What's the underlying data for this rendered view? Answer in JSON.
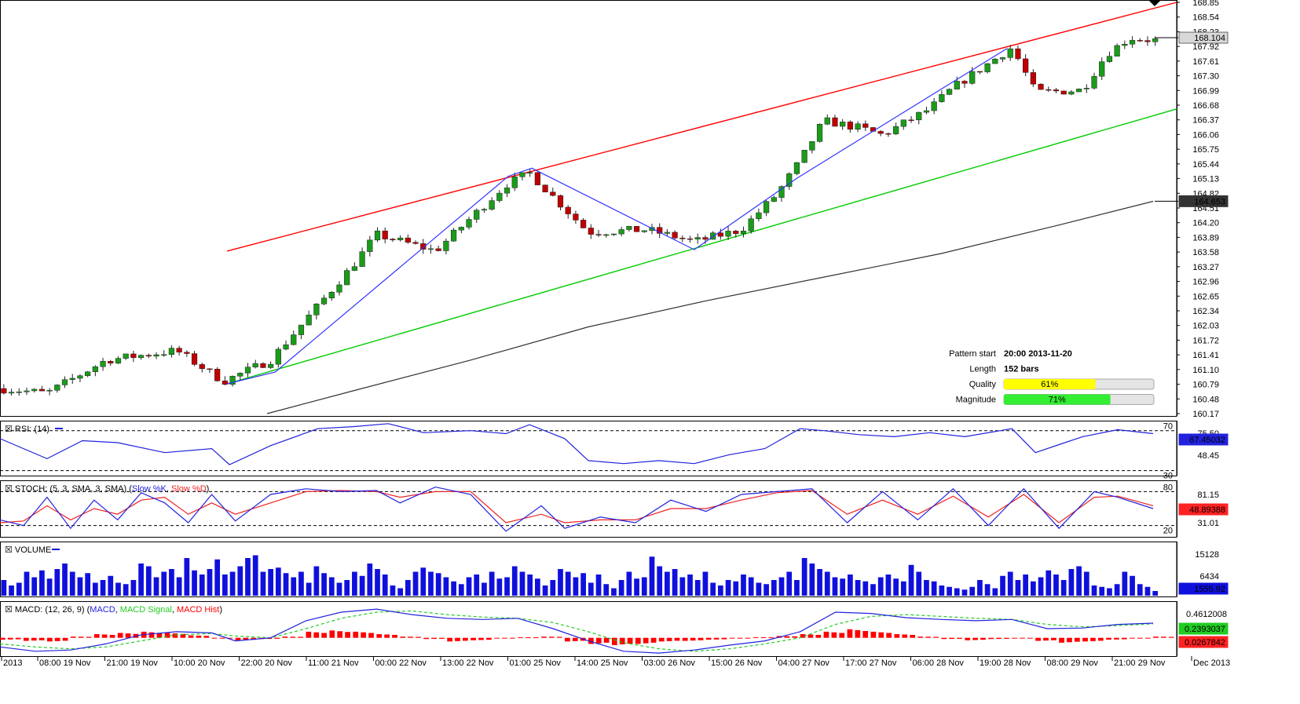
{
  "chart_data": {
    "type": "candlestick",
    "main": {
      "y_ticks": [
        "168.85",
        "168.54",
        "168.23",
        "167.92",
        "167.61",
        "167.30",
        "166.99",
        "166.68",
        "166.37",
        "166.06",
        "165.75",
        "165.44",
        "165.13",
        "164.82",
        "164.51",
        "164.20",
        "163.89",
        "163.58",
        "163.27",
        "162.96",
        "162.65",
        "162.34",
        "162.03",
        "161.72",
        "161.41",
        "161.10",
        "160.79",
        "160.48",
        "160.17"
      ],
      "ylim": [
        160.17,
        168.85
      ],
      "last_price_label": "168.104",
      "ma_price_label": "164.653",
      "pattern_info": {
        "start_label": "Pattern start",
        "start_value": "20:00 2013-11-20",
        "length_label": "Length",
        "length_value": "152 bars",
        "quality_label": "Quality",
        "quality_value": "61%",
        "quality": 0.61,
        "magnitude_label": "Magnitude",
        "magnitude_value": "71%",
        "magnitude": 0.71
      },
      "channel_upper": {
        "x": [
          0.193,
          1.0
        ],
        "y": [
          163.6,
          168.85
        ]
      },
      "channel_lower": {
        "x": [
          0.193,
          1.0
        ],
        "y": [
          160.8,
          166.6
        ]
      },
      "pattern_path": {
        "x": [
          0.193,
          0.234,
          0.432,
          0.452,
          0.59,
          0.678,
          0.856
        ],
        "y": [
          160.8,
          161.05,
          165.18,
          165.35,
          163.63,
          165.15,
          167.88
        ]
      },
      "ma_line": {
        "x": [
          0.227,
          0.3,
          0.4,
          0.5,
          0.6,
          0.7,
          0.8,
          0.9,
          0.98
        ],
        "y": [
          160.17,
          160.65,
          161.3,
          162.0,
          162.55,
          163.05,
          163.55,
          164.15,
          164.65
        ]
      },
      "candle_anchors": {
        "x": [
          0.0,
          0.04,
          0.09,
          0.15,
          0.19,
          0.23,
          0.3,
          0.32,
          0.37,
          0.43,
          0.45,
          0.5,
          0.55,
          0.59,
          0.63,
          0.66,
          0.68,
          0.7,
          0.73,
          0.75,
          0.79,
          0.81,
          0.86,
          0.88,
          0.92,
          0.94,
          0.96,
          0.98
        ],
        "y": [
          160.7,
          160.6,
          161.3,
          161.5,
          160.85,
          161.3,
          163.3,
          163.95,
          163.6,
          165.0,
          165.25,
          164.0,
          164.05,
          163.8,
          164.05,
          164.8,
          165.5,
          166.35,
          166.2,
          166.05,
          166.6,
          167.05,
          167.9,
          166.95,
          167.0,
          167.75,
          168.1,
          168.05
        ]
      }
    },
    "rsi": {
      "label": "RSI: (14)",
      "value_label": "67.45032",
      "level_labels": [
        "70",
        "48.45",
        "30"
      ],
      "top_label": "75.50",
      "levels": [
        70,
        30
      ],
      "ylim": [
        25,
        80
      ],
      "x": [
        0.0,
        0.04,
        0.07,
        0.1,
        0.14,
        0.18,
        0.195,
        0.23,
        0.27,
        0.3,
        0.33,
        0.36,
        0.4,
        0.43,
        0.45,
        0.48,
        0.5,
        0.53,
        0.56,
        0.59,
        0.62,
        0.65,
        0.68,
        0.7,
        0.73,
        0.76,
        0.79,
        0.82,
        0.86,
        0.88,
        0.9,
        0.92,
        0.95,
        0.98
      ],
      "y": [
        62,
        42,
        60,
        58,
        48,
        52,
        36,
        55,
        72,
        74,
        77,
        68,
        70,
        67,
        76,
        62,
        40,
        37,
        40,
        37,
        46,
        52,
        72,
        70,
        66,
        64,
        68,
        64,
        72,
        48,
        56,
        64,
        71,
        67
      ]
    },
    "stoch": {
      "label": "STOCH: (5, 3, SMA, 3, SMA)",
      "k_label": "Slow %K",
      "d_label": "Slow %D",
      "value_label": "48.89388",
      "level_labels": [
        "80",
        "81.15",
        "20",
        "31.01"
      ],
      "levels": [
        80,
        20
      ],
      "ylim": [
        0,
        100
      ],
      "k": {
        "x": [
          0.0,
          0.02,
          0.04,
          0.06,
          0.08,
          0.1,
          0.12,
          0.14,
          0.16,
          0.18,
          0.2,
          0.23,
          0.26,
          0.29,
          0.32,
          0.34,
          0.37,
          0.4,
          0.43,
          0.46,
          0.48,
          0.51,
          0.54,
          0.57,
          0.6,
          0.63,
          0.66,
          0.69,
          0.72,
          0.75,
          0.78,
          0.81,
          0.84,
          0.87,
          0.9,
          0.93,
          0.95,
          0.98
        ],
        "y": [
          30,
          20,
          70,
          15,
          65,
          30,
          78,
          60,
          25,
          75,
          28,
          75,
          85,
          80,
          82,
          60,
          88,
          75,
          10,
          55,
          15,
          35,
          25,
          65,
          45,
          75,
          80,
          85,
          25,
          80,
          30,
          85,
          20,
          85,
          15,
          80,
          70,
          50
        ]
      },
      "d": {
        "x": [
          0.0,
          0.02,
          0.04,
          0.06,
          0.08,
          0.1,
          0.12,
          0.14,
          0.16,
          0.18,
          0.2,
          0.23,
          0.26,
          0.29,
          0.32,
          0.34,
          0.37,
          0.4,
          0.43,
          0.46,
          0.48,
          0.51,
          0.54,
          0.57,
          0.6,
          0.63,
          0.66,
          0.69,
          0.72,
          0.75,
          0.78,
          0.81,
          0.84,
          0.87,
          0.9,
          0.93,
          0.95,
          0.98
        ],
        "y": [
          25,
          28,
          55,
          30,
          50,
          40,
          65,
          70,
          40,
          60,
          40,
          60,
          80,
          82,
          80,
          70,
          80,
          80,
          25,
          40,
          25,
          30,
          30,
          50,
          50,
          65,
          78,
          82,
          40,
          65,
          40,
          72,
          35,
          75,
          25,
          70,
          72,
          55
        ]
      }
    },
    "volume": {
      "label": "VOLUME",
      "value_label": "1555.92",
      "tick_labels": [
        "15128",
        "6434"
      ],
      "ylim": [
        0,
        20000
      ],
      "values": [
        6000,
        4000,
        5000,
        9000,
        7000,
        9500,
        6500,
        10000,
        12000,
        9000,
        7000,
        8500,
        5000,
        6000,
        7500,
        5000,
        4500,
        6000,
        12000,
        11000,
        7000,
        9000,
        10000,
        7000,
        14000,
        9500,
        8000,
        10000,
        13500,
        8000,
        9000,
        11000,
        14000,
        15000,
        9000,
        10000,
        10500,
        8500,
        7000,
        9000,
        5000,
        11000,
        8500,
        7000,
        5000,
        6000,
        9000,
        7500,
        12000,
        10000,
        8000,
        4000,
        3000,
        6000,
        9000,
        10500,
        9000,
        8500,
        7000,
        5500,
        4500,
        7000,
        8000,
        5000,
        9000,
        6500,
        7000,
        11000,
        9000,
        8000,
        6500,
        4000,
        6000,
        10000,
        9000,
        7000,
        8500,
        5000,
        8000,
        4500,
        3000,
        6000,
        9000,
        6500,
        7000,
        14500,
        11000,
        9000,
        10000,
        7000,
        8000,
        6000,
        9000,
        5000,
        4000,
        6000,
        5500,
        8000,
        7000,
        5000,
        4500,
        6000,
        7000,
        9000,
        6000,
        14000,
        12000,
        10000,
        9000,
        7000,
        6500,
        8000,
        6000,
        5500,
        4500,
        7000,
        8000,
        6500,
        5500,
        11500,
        9000,
        6000,
        5500,
        4000,
        3500,
        3000,
        2500,
        3500,
        6000,
        4500,
        3000,
        7500,
        9000,
        6000,
        8000,
        5500,
        7000,
        9500,
        8000,
        6000,
        10000,
        11000,
        9000,
        4000,
        3500,
        3000,
        4500,
        9000,
        7500,
        4500,
        3500,
        2000
      ]
    },
    "macd": {
      "label": "MACD: (12, 26, 9)",
      "macd_label": "MACD",
      "signal_label": "MACD Signal",
      "hist_label": "MACD Hist",
      "tick_label": "0.4612008",
      "macd_value": "0.2393037",
      "hist_value": "0.0267842",
      "ylim": [
        -0.3,
        0.6
      ],
      "macd": {
        "x": [
          0.0,
          0.03,
          0.06,
          0.09,
          0.12,
          0.15,
          0.18,
          0.2,
          0.23,
          0.26,
          0.29,
          0.32,
          0.35,
          0.38,
          0.41,
          0.44,
          0.47,
          0.5,
          0.53,
          0.56,
          0.59,
          0.62,
          0.65,
          0.68,
          0.71,
          0.74,
          0.77,
          0.8,
          0.83,
          0.86,
          0.89,
          0.92,
          0.95,
          0.98
        ],
        "y": [
          -0.15,
          -0.22,
          -0.2,
          -0.1,
          0.05,
          0.1,
          0.08,
          -0.05,
          0.0,
          0.28,
          0.42,
          0.47,
          0.38,
          0.32,
          0.3,
          0.32,
          0.15,
          -0.05,
          -0.22,
          -0.25,
          -0.2,
          -0.12,
          -0.05,
          0.1,
          0.42,
          0.4,
          0.33,
          0.3,
          0.28,
          0.3,
          0.15,
          0.16,
          0.22,
          0.24
        ]
      },
      "signal": {
        "x": [
          0.0,
          0.03,
          0.06,
          0.09,
          0.12,
          0.15,
          0.18,
          0.2,
          0.23,
          0.26,
          0.29,
          0.32,
          0.35,
          0.38,
          0.41,
          0.44,
          0.47,
          0.5,
          0.53,
          0.56,
          0.59,
          0.62,
          0.65,
          0.68,
          0.71,
          0.74,
          0.77,
          0.8,
          0.83,
          0.86,
          0.89,
          0.92,
          0.95,
          0.98
        ],
        "y": [
          -0.1,
          -0.15,
          -0.18,
          -0.15,
          -0.05,
          0.05,
          0.07,
          0.03,
          0.0,
          0.15,
          0.32,
          0.42,
          0.44,
          0.38,
          0.34,
          0.32,
          0.25,
          0.1,
          -0.08,
          -0.18,
          -0.22,
          -0.18,
          -0.1,
          0.0,
          0.22,
          0.35,
          0.38,
          0.35,
          0.32,
          0.3,
          0.22,
          0.18,
          0.2,
          0.23
        ]
      },
      "hist": {
        "x": [
          0.0,
          0.02,
          0.04,
          0.06,
          0.08,
          0.1,
          0.12,
          0.14,
          0.16,
          0.18,
          0.2,
          0.22,
          0.24,
          0.26,
          0.28,
          0.3,
          0.32,
          0.34,
          0.36,
          0.38,
          0.4,
          0.42,
          0.44,
          0.46,
          0.48,
          0.5,
          0.52,
          0.54,
          0.56,
          0.58,
          0.6,
          0.62,
          0.64,
          0.66,
          0.68,
          0.7,
          0.72,
          0.74,
          0.76,
          0.78,
          0.8,
          0.82,
          0.84,
          0.86,
          0.88,
          0.9,
          0.92,
          0.94,
          0.96,
          0.98
        ],
        "y": [
          -0.03,
          -0.05,
          -0.06,
          0.02,
          0.06,
          0.08,
          0.1,
          0.08,
          0.04,
          0.0,
          -0.04,
          -0.02,
          0.02,
          0.1,
          0.12,
          0.1,
          0.06,
          0.02,
          -0.02,
          -0.06,
          -0.04,
          -0.01,
          0.01,
          0.02,
          -0.06,
          -0.1,
          -0.12,
          -0.1,
          -0.06,
          -0.05,
          -0.03,
          -0.01,
          0.01,
          0.03,
          0.06,
          0.1,
          0.14,
          0.1,
          0.06,
          0.02,
          -0.02,
          -0.04,
          -0.02,
          0.0,
          -0.05,
          -0.08,
          -0.06,
          -0.03,
          0.0,
          0.02
        ]
      }
    },
    "x_axis_labels": [
      "2013",
      "08:00 19 Nov",
      "21:00 19 Nov",
      "10:00 20 Nov",
      "22:00 20 Nov",
      "11:00 21 Nov",
      "00:00 22 Nov",
      "13:00 22 Nov",
      "01:00 25 Nov",
      "14:00 25 Nov",
      "03:00 26 Nov",
      "15:00 26 Nov",
      "04:00 27 Nov",
      "17:00 27 Nov",
      "06:00 28 Nov",
      "19:00 28 Nov",
      "08:00 29 Nov",
      "21:00 29 Nov",
      "Dec 2013"
    ],
    "colors": {
      "up": "#1a9c1a",
      "down": "#c00000",
      "channel_upper": "#ff0000",
      "channel_lower": "#00cc00",
      "pattern": "#3333ff",
      "ma": "#333333",
      "rsi": "#2222dd",
      "stoch_k": "#2222dd",
      "stoch_d": "#ee2222",
      "volume": "#1010dd",
      "macd": "#2222dd",
      "signal": "#22cc22",
      "hist": "#ff0000"
    }
  }
}
